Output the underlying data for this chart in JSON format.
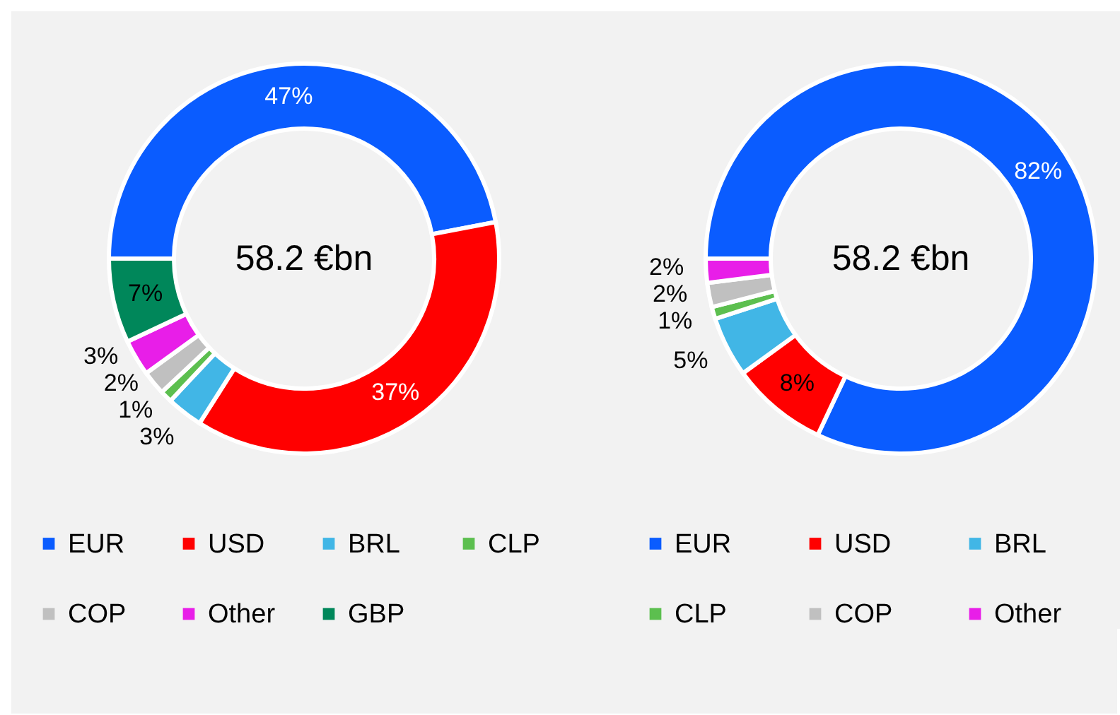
{
  "chart_data": [
    {
      "type": "donut",
      "categories": [
        "EUR",
        "USD",
        "BRL",
        "CLP",
        "COP",
        "Other",
        "GBP"
      ],
      "values": [
        47,
        37,
        3,
        1,
        2,
        3,
        7
      ],
      "value_labels": [
        "47%",
        "37%",
        "3%",
        "1%",
        "2%",
        "3%",
        "7%"
      ],
      "colors": [
        "#0a5cff",
        "#ff0000",
        "#41b6e6",
        "#5cbf4f",
        "#c0c0c0",
        "#e81ee8",
        "#00875a"
      ],
      "legend": "bottom",
      "annotations": [
        "58.2 €bn"
      ]
    },
    {
      "type": "donut",
      "categories": [
        "EUR",
        "USD",
        "BRL",
        "CLP",
        "COP",
        "Other"
      ],
      "values": [
        82,
        8,
        5,
        1,
        2,
        2
      ],
      "value_labels": [
        "82%",
        "8%",
        "5%",
        "1%",
        "2%",
        "2%"
      ],
      "colors": [
        "#0a5cff",
        "#ff0000",
        "#41b6e6",
        "#5cbf4f",
        "#c0c0c0",
        "#e81ee8"
      ],
      "legend": "bottom",
      "annotations": [
        "58.2 €bn"
      ]
    }
  ]
}
